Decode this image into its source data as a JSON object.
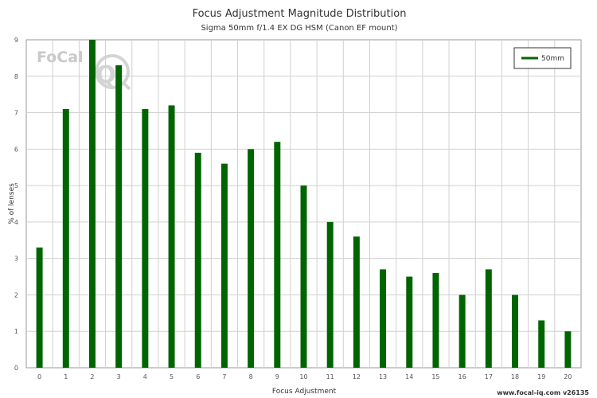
{
  "chart_data": {
    "type": "bar",
    "title": "Focus Adjustment Magnitude Distribution",
    "subtitle": "Sigma 50mm f/1.4 EX DG HSM (Canon EF mount)",
    "xlabel": "Focus Adjustment",
    "ylabel": "% of lenses",
    "categories": [
      "0",
      "1",
      "2",
      "3",
      "4",
      "5",
      "6",
      "7",
      "8",
      "9",
      "10",
      "11",
      "12",
      "13",
      "14",
      "15",
      "16",
      "17",
      "18",
      "19",
      "20"
    ],
    "series": [
      {
        "name": "50mm",
        "values": [
          3.3,
          7.1,
          9.0,
          8.3,
          7.1,
          7.2,
          5.9,
          5.6,
          6.0,
          6.2,
          5.0,
          4.0,
          3.6,
          2.7,
          2.5,
          2.6,
          2.0,
          2.7,
          2.0,
          1.3,
          1.0
        ],
        "color": "#006400"
      }
    ],
    "ylim": [
      0,
      9
    ],
    "yticks": [
      "0",
      "1",
      "2",
      "3",
      "4",
      "5",
      "6",
      "7",
      "8",
      "9"
    ],
    "grid": true,
    "legend_position": "top-right"
  },
  "logo": {
    "text": "FoCal",
    "mark": "iQ"
  },
  "footer": "www.focal-iq.com  v26135",
  "colors": {
    "bar": "#006400",
    "grid": "#d0d0d0",
    "axis": "#999999"
  }
}
